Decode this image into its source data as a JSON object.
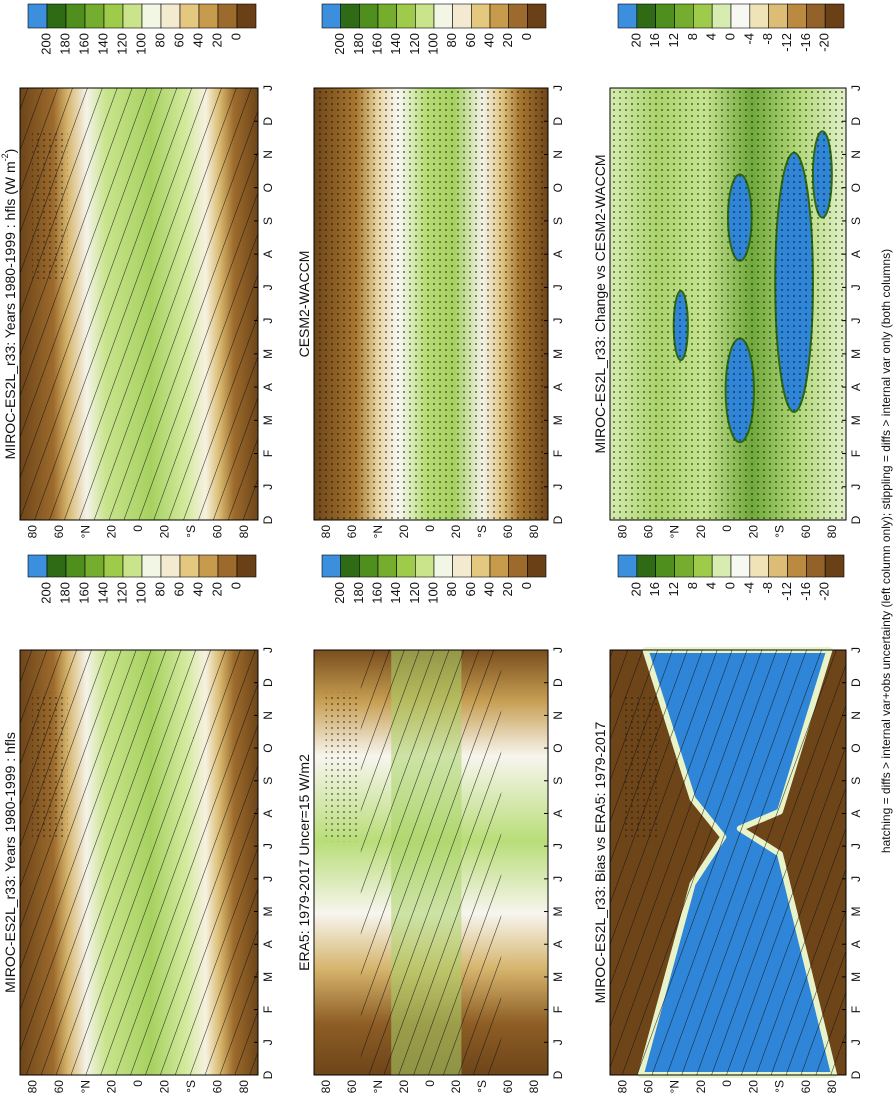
{
  "months": [
    "D",
    "J",
    "F",
    "M",
    "A",
    "M",
    "J",
    "J",
    "A",
    "S",
    "O",
    "N",
    "D",
    "J"
  ],
  "latitudes": [
    "80",
    "60",
    "°N",
    "20",
    "0",
    "20",
    "°S",
    "60",
    "80"
  ],
  "panels": [
    {
      "title": "MIROC-ES2L_r33: Years 1980-1999 : hfls (W m",
      "title_sup": "-2",
      "title_end": ")",
      "colorbar_labels": [
        "200",
        "180",
        "160",
        "140",
        "120",
        "100",
        "80",
        "60",
        "40",
        "20",
        "0"
      ]
    },
    {
      "title": "MIROC-ES2L_r33: Years 1980-1999 : hfls",
      "colorbar_labels": [
        "200",
        "180",
        "160",
        "140",
        "120",
        "100",
        "80",
        "60",
        "40",
        "20",
        "0"
      ]
    },
    {
      "title": "CESM2-WACCM",
      "colorbar_labels": [
        "200",
        "180",
        "160",
        "140",
        "120",
        "100",
        "80",
        "60",
        "40",
        "20",
        "0"
      ]
    },
    {
      "title": "ERA5: 1979-2017 Uncer=15 W/m2",
      "colorbar_labels": [
        "200",
        "180",
        "160",
        "140",
        "120",
        "100",
        "80",
        "60",
        "40",
        "20",
        "0"
      ]
    },
    {
      "title": "MIROC-ES2L_r33: Change vs CESM2-WACCM",
      "colorbar_labels": [
        "20",
        "16",
        "12",
        "8",
        "4",
        "0",
        "-4",
        "-8",
        "-12",
        "-16",
        "-20"
      ]
    },
    {
      "title": "MIROC-ES2L_r33: Bias vs ERA5: 1979-2017",
      "colorbar_labels": [
        "20",
        "16",
        "12",
        "8",
        "4",
        "0",
        "-4",
        "-8",
        "-12",
        "-16",
        "-20"
      ]
    }
  ],
  "footer": "hatching = diffs > internal var+obs uncertainty (left column only); stippling = diffs > internal var only (both columns)"
}
